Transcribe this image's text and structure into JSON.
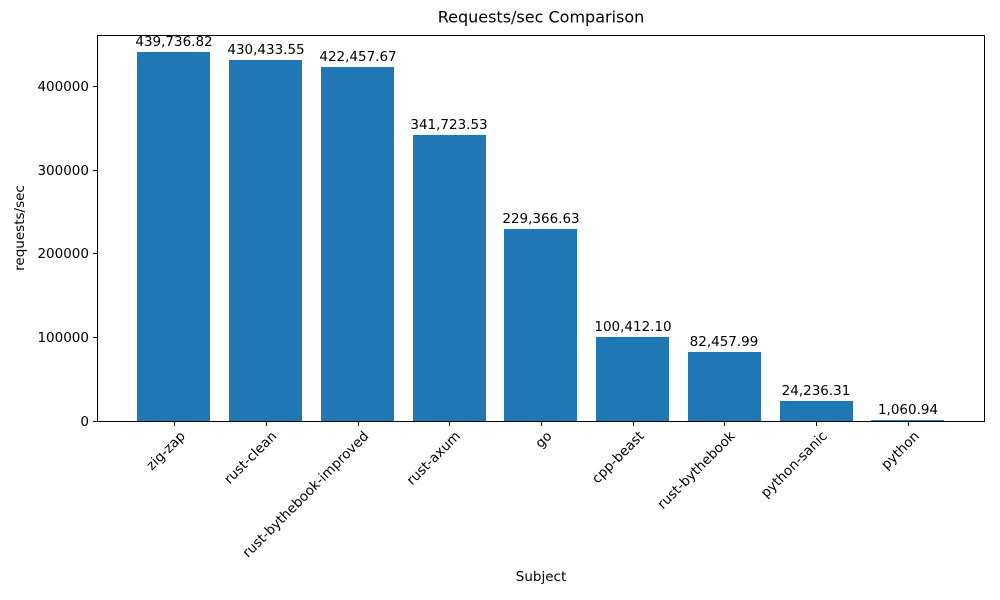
{
  "chart_data": {
    "type": "bar",
    "title": "Requests/sec Comparison",
    "xlabel": "Subject",
    "ylabel": "requests/sec",
    "categories": [
      "zig-zap",
      "rust-clean",
      "rust-bythebook-improved",
      "rust-axum",
      "go",
      "cpp-beast",
      "rust-bythebook",
      "python-sanic",
      "python"
    ],
    "values": [
      439736.82,
      430433.55,
      422457.67,
      341723.53,
      229366.63,
      100412.1,
      82457.99,
      24236.31,
      1060.94
    ],
    "value_labels": [
      "439,736.82",
      "430,433.55",
      "422,457.67",
      "341,723.53",
      "229,366.63",
      "100,412.10",
      "82,457.99",
      "24,236.31",
      "1,060.94"
    ],
    "yticks": [
      0,
      100000,
      200000,
      300000,
      400000
    ],
    "ytick_labels": [
      "0",
      "100000",
      "200000",
      "300000",
      "400000"
    ],
    "ylim": [
      0,
      461723.66
    ],
    "bar_color": "#1f77b4",
    "grid": false,
    "legend": "none"
  }
}
